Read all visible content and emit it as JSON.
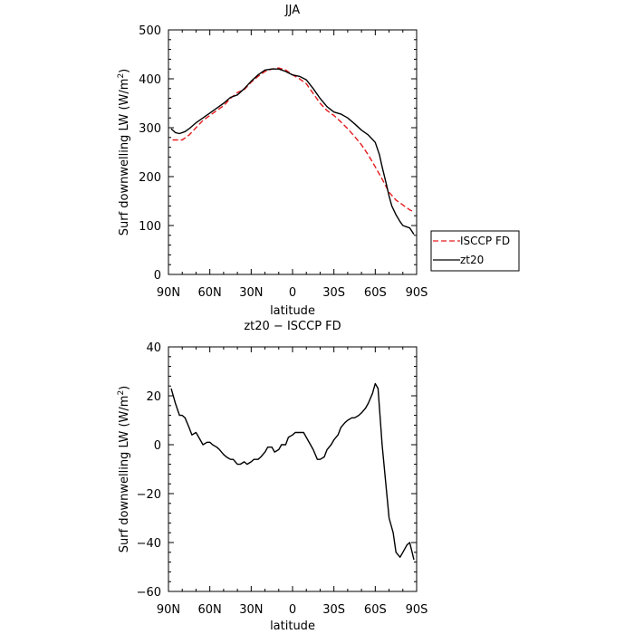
{
  "chart_data": [
    {
      "type": "line",
      "title": "JJA",
      "xlabel": "latitude",
      "ylabel": "Surf downwelling LW (W/m²)",
      "ylabel_main": "Surf downwelling LW (W/m",
      "ylabel_sup": "2",
      "ylabel_end": ")",
      "xlim": [
        90,
        -90
      ],
      "ylim": [
        0,
        500
      ],
      "xticks": [
        90,
        60,
        30,
        0,
        -30,
        -60,
        -90
      ],
      "xtick_labels": [
        "90N",
        "60N",
        "30N",
        "0",
        "30S",
        "60S",
        "90S"
      ],
      "yticks": [
        0,
        100,
        200,
        300,
        400,
        500
      ],
      "ytick_labels": [
        "0",
        "100",
        "200",
        "300",
        "400",
        "500"
      ],
      "legend": "right",
      "series": [
        {
          "name": "ISCCP FD",
          "color": "#e41a1c",
          "dash": "dashed",
          "x": [
            87,
            80,
            75,
            70,
            65,
            60,
            55,
            50,
            45,
            40,
            35,
            30,
            25,
            20,
            15,
            10,
            5,
            0,
            -5,
            -10,
            -15,
            -20,
            -25,
            -30,
            -35,
            -40,
            -45,
            -50,
            -55,
            -60,
            -65,
            -70,
            -75,
            -80,
            -85,
            -88
          ],
          "y": [
            275,
            275,
            285,
            300,
            315,
            325,
            335,
            345,
            360,
            372,
            378,
            393,
            405,
            415,
            420,
            422,
            418,
            408,
            400,
            390,
            370,
            350,
            335,
            325,
            312,
            298,
            282,
            265,
            244,
            220,
            195,
            168,
            152,
            142,
            132,
            128
          ]
        },
        {
          "name": "zt20",
          "color": "#000000",
          "dash": "solid",
          "x": [
            88,
            85,
            82,
            78,
            75,
            70,
            65,
            60,
            55,
            50,
            45,
            40,
            35,
            30,
            25,
            20,
            15,
            10,
            5,
            0,
            -5,
            -10,
            -15,
            -20,
            -25,
            -30,
            -35,
            -40,
            -45,
            -50,
            -55,
            -60,
            -63,
            -65,
            -68,
            -70,
            -72,
            -75,
            -78,
            -80,
            -85,
            -88
          ],
          "y": [
            298,
            290,
            288,
            292,
            298,
            310,
            320,
            330,
            340,
            350,
            362,
            367,
            380,
            395,
            408,
            418,
            420,
            420,
            415,
            408,
            405,
            398,
            380,
            360,
            343,
            332,
            328,
            320,
            308,
            295,
            285,
            270,
            245,
            220,
            185,
            160,
            140,
            122,
            108,
            100,
            95,
            82
          ]
        }
      ]
    },
    {
      "type": "line",
      "title": "zt20 − ISCCP FD",
      "xlabel": "latitude",
      "ylabel": "Surf downwelling LW (W/m²)",
      "ylabel_main": "Surf downwelling LW (W/m",
      "ylabel_sup": "2",
      "ylabel_end": ")",
      "xlim": [
        90,
        -90
      ],
      "ylim": [
        -60,
        40
      ],
      "xticks": [
        90,
        60,
        30,
        0,
        -30,
        -60,
        -90
      ],
      "xtick_labels": [
        "90N",
        "60N",
        "30N",
        "0",
        "30S",
        "60S",
        "90S"
      ],
      "yticks": [
        -60,
        -40,
        -20,
        0,
        20,
        40
      ],
      "ytick_labels": [
        "−60",
        "−40",
        "−20",
        "0",
        "20",
        "40"
      ],
      "series": [
        {
          "color": "#000000",
          "dash": "solid",
          "x": [
            88,
            85,
            82,
            80,
            78,
            75,
            73,
            70,
            68,
            65,
            62,
            60,
            58,
            55,
            53,
            50,
            48,
            45,
            43,
            40,
            38,
            35,
            33,
            30,
            28,
            25,
            23,
            20,
            18,
            15,
            13,
            10,
            8,
            5,
            3,
            0,
            -2,
            -5,
            -8,
            -10,
            -13,
            -15,
            -18,
            -20,
            -23,
            -25,
            -28,
            -30,
            -33,
            -35,
            -38,
            -40,
            -43,
            -45,
            -48,
            -50,
            -53,
            -55,
            -58,
            -60,
            -62,
            -65,
            -68,
            -70,
            -73,
            -75,
            -78,
            -80,
            -83,
            -85,
            -88
          ],
          "y": [
            23,
            17,
            12,
            12,
            11,
            7,
            4,
            5,
            3,
            0,
            1,
            1,
            0,
            -1,
            -2,
            -4,
            -5,
            -6,
            -6,
            -8,
            -8,
            -7,
            -8,
            -7,
            -6,
            -6,
            -5,
            -3,
            -1,
            -1,
            -3,
            -2,
            0,
            0,
            3,
            4,
            5,
            5,
            5,
            3,
            0,
            -2,
            -6,
            -6,
            -5,
            -2,
            0,
            2,
            4,
            7,
            9,
            10,
            11,
            11,
            12,
            13,
            15,
            17,
            21,
            25,
            23,
            0,
            -18,
            -30,
            -36,
            -44,
            -46,
            -44,
            -41,
            -40,
            -47
          ]
        }
      ]
    }
  ]
}
